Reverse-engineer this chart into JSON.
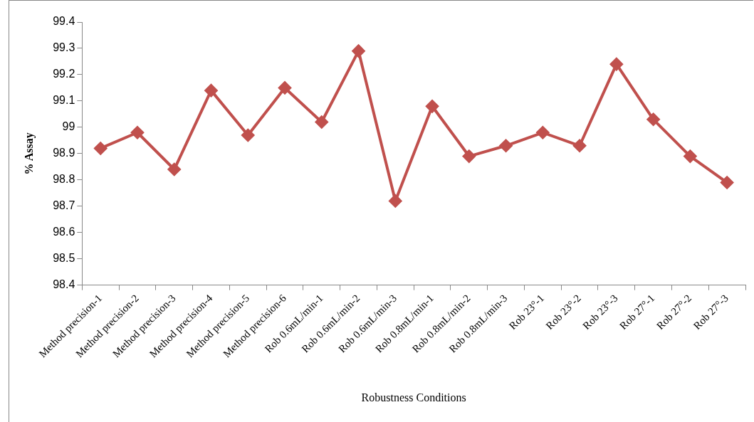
{
  "chart_data": {
    "type": "line",
    "xlabel": "Robustness Conditions",
    "ylabel": "% Assay",
    "categories": [
      "Method precision-1",
      "Method precision-2",
      "Method precision-3",
      "Method precision-4",
      "Method precision-5",
      "Method precision-6",
      "Rob 0.6mL/min-1",
      "Rob 0.6mL/min-2",
      "Rob 0.6mL/min-3",
      "Rob 0.8mL/min-1",
      "Rob 0.8mL/min-2",
      "Rob 0.8mL/min-3",
      "Rob 23°-1",
      "Rob 23°-2",
      "Rob 23°-3",
      "Rob 27°-1",
      "Rob 27°-2",
      "Rob 27°-3"
    ],
    "series": [
      {
        "color": "#c0504d",
        "values": [
          98.92,
          98.98,
          98.84,
          99.14,
          98.97,
          99.15,
          99.02,
          99.29,
          98.72,
          99.08,
          98.89,
          98.93,
          98.98,
          98.93,
          99.24,
          99.03,
          98.89,
          98.79
        ]
      }
    ],
    "ylim": [
      98.4,
      99.4
    ],
    "yticks": [
      98.4,
      98.5,
      98.6,
      98.7,
      98.8,
      98.9,
      99,
      99.1,
      99.2,
      99.3,
      99.4
    ],
    "grid": false,
    "legend": false,
    "marker": "diamond",
    "line_style": "solid"
  }
}
